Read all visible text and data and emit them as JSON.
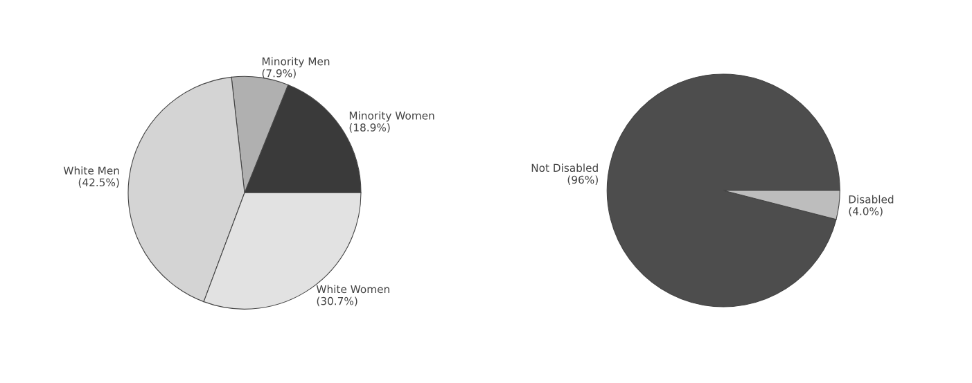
{
  "chart_data": [
    {
      "type": "pie",
      "categories": [
        "Minority Women",
        "Minority Men",
        "White Men",
        "White Women"
      ],
      "values": [
        18.9,
        7.9,
        42.5,
        30.7
      ],
      "value_labels": [
        "(18.9%)",
        "(7.9%)",
        "(42.5%)",
        "(30.7%)"
      ],
      "colors": [
        "#3a3a3a",
        "#b0b0b0",
        "#d4d4d4",
        "#e2e2e2"
      ]
    },
    {
      "type": "pie",
      "categories": [
        "Not Disabled",
        "Disabled"
      ],
      "values": [
        96,
        4.0
      ],
      "value_labels": [
        "(96%)",
        "(4.0%)"
      ],
      "colors": [
        "#4d4d4d",
        "#bdbdbd"
      ]
    }
  ]
}
